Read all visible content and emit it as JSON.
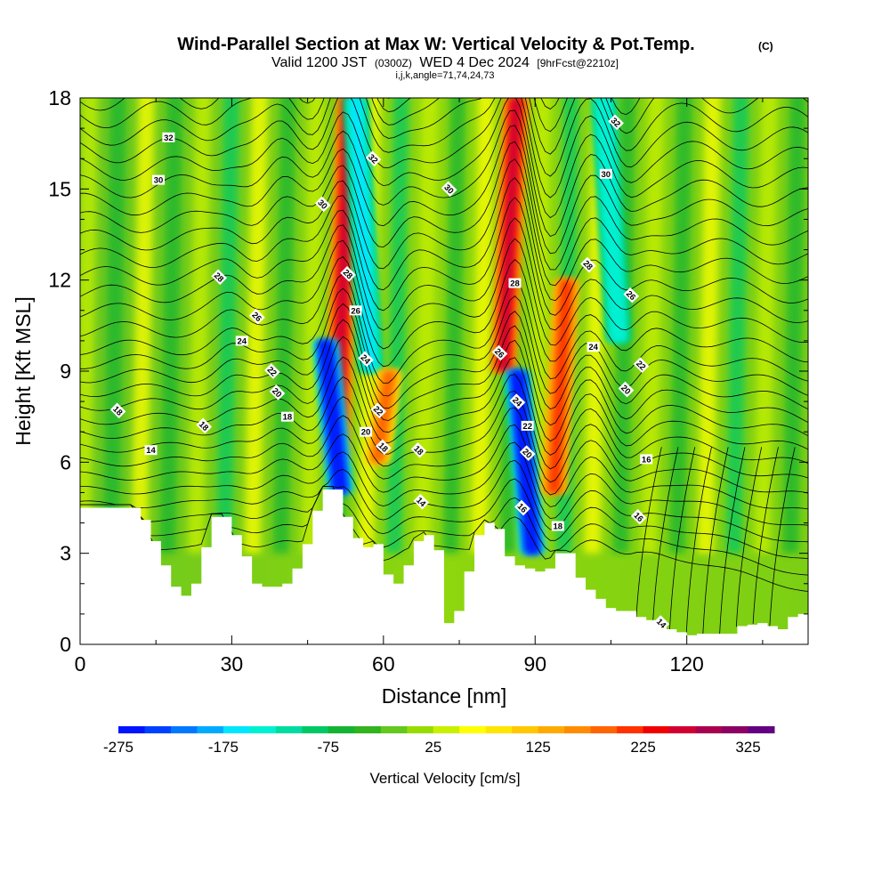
{
  "header": {
    "title": "Wind-Parallel Section at Max W: Vertical Velocity & Pot.Temp.",
    "copyright": "(C)",
    "valid_prefix": "Valid 1200 JST",
    "valid_utc": "(0300Z)",
    "valid_date": "WED 4 Dec 2024",
    "forecast": "[9hrFcst@2210z]",
    "indices": "i,j,k,angle=71,74,24,73"
  },
  "chart_data": {
    "type": "heatmap",
    "xlabel": "Distance [nm]",
    "ylabel": "Height [Kft MSL]",
    "xlim": [
      0,
      144
    ],
    "ylim": [
      0,
      18
    ],
    "x_ticks": [
      "0",
      "30",
      "60",
      "90",
      "120"
    ],
    "y_ticks": [
      "0",
      "3",
      "6",
      "9",
      "12",
      "15",
      "18"
    ],
    "grid": false,
    "colorbar": {
      "label": "Vertical Velocity [cm/s]",
      "tick_labels": [
        "-275",
        "-175",
        "-75",
        "25",
        "125",
        "225",
        "325"
      ],
      "range": [
        -275,
        350
      ],
      "colors": [
        "#0014ff",
        "#0040ff",
        "#0078ff",
        "#00aaff",
        "#00e6ff",
        "#00f0d2",
        "#00dca0",
        "#00c864",
        "#14b432",
        "#32b41e",
        "#64c81e",
        "#96dc00",
        "#c8f000",
        "#ffff00",
        "#ffe600",
        "#ffc800",
        "#ffaa00",
        "#ff8c00",
        "#ff6400",
        "#ff3200",
        "#f00000",
        "#d20032",
        "#aa0050",
        "#8c0064",
        "#640082"
      ]
    },
    "vertical_velocity_features": [
      {
        "kind": "updraft",
        "x": 52,
        "y_bottom": 6,
        "y_top": 18,
        "peak": 250
      },
      {
        "kind": "downdraft",
        "x": 50,
        "y_bottom": 5,
        "y_top": 10,
        "peak": -275
      },
      {
        "kind": "downdraft",
        "x": 56,
        "y_bottom": 9,
        "y_top": 18,
        "peak": -175
      },
      {
        "kind": "updraft",
        "x": 60,
        "y_bottom": 6,
        "y_top": 9,
        "peak": 175
      },
      {
        "kind": "updraft",
        "x": 85,
        "y_bottom": 9,
        "y_top": 18,
        "peak": 250
      },
      {
        "kind": "downdraft",
        "x": 88,
        "y_bottom": 3,
        "y_top": 9,
        "peak": -275
      },
      {
        "kind": "updraft",
        "x": 95,
        "y_bottom": 5,
        "y_top": 12,
        "peak": 200
      },
      {
        "kind": "downdraft",
        "x": 105,
        "y_bottom": 10,
        "y_top": 18,
        "peak": -150
      }
    ],
    "terrain_kft": {
      "x": [
        0,
        6,
        10,
        12,
        14,
        16,
        18,
        20,
        22,
        24,
        26,
        28,
        30,
        32,
        34,
        36,
        38,
        40,
        42,
        44,
        46,
        48,
        50,
        52,
        54,
        56,
        58,
        60,
        62,
        64,
        66,
        68,
        70,
        72,
        74,
        76,
        78,
        80,
        82,
        84,
        86,
        88,
        90,
        92,
        94,
        96,
        98,
        100,
        102,
        104,
        106,
        108,
        110,
        112,
        114,
        116,
        118,
        120,
        122,
        124,
        126,
        128,
        130,
        132,
        134,
        136,
        138,
        140,
        142,
        144
      ],
      "h": [
        4.5,
        4.5,
        4.5,
        4.1,
        3.4,
        2.6,
        1.9,
        1.6,
        2.0,
        3.2,
        4.2,
        4.2,
        3.6,
        2.9,
        2.0,
        1.9,
        1.9,
        2.0,
        2.5,
        3.3,
        4.4,
        5.1,
        5.1,
        4.2,
        3.5,
        3.2,
        3.3,
        2.3,
        2.0,
        2.6,
        3.4,
        3.6,
        3.1,
        0.7,
        1.1,
        2.4,
        3.6,
        4.0,
        3.8,
        2.9,
        2.6,
        2.5,
        2.4,
        2.5,
        3.0,
        3.0,
        2.2,
        1.8,
        1.5,
        1.2,
        1.1,
        1.1,
        0.9,
        0.8,
        0.7,
        0.5,
        0.4,
        0.3,
        0.35,
        0.35,
        0.35,
        0.35,
        0.6,
        0.65,
        0.7,
        0.6,
        0.5,
        0.9,
        1.0,
        1.0
      ]
    },
    "theta_contour_labels": [
      {
        "text": "32",
        "x": 17.5,
        "y": 16.7
      },
      {
        "text": "32",
        "x": 58,
        "y": 16.0
      },
      {
        "text": "32",
        "x": 106,
        "y": 17.2
      },
      {
        "text": "30",
        "x": 15.5,
        "y": 15.3
      },
      {
        "text": "30",
        "x": 48,
        "y": 14.5
      },
      {
        "text": "30",
        "x": 73,
        "y": 15.0
      },
      {
        "text": "30",
        "x": 104,
        "y": 15.5
      },
      {
        "text": "28",
        "x": 27.5,
        "y": 12.1
      },
      {
        "text": "28",
        "x": 53,
        "y": 12.2
      },
      {
        "text": "28",
        "x": 86,
        "y": 11.9
      },
      {
        "text": "28",
        "x": 100.5,
        "y": 12.5
      },
      {
        "text": "26",
        "x": 35,
        "y": 10.8
      },
      {
        "text": "26",
        "x": 54.5,
        "y": 11.0
      },
      {
        "text": "26",
        "x": 83,
        "y": 9.6
      },
      {
        "text": "26",
        "x": 109,
        "y": 11.5
      },
      {
        "text": "24",
        "x": 32,
        "y": 10.0
      },
      {
        "text": "24",
        "x": 56.5,
        "y": 9.4
      },
      {
        "text": "24",
        "x": 86.5,
        "y": 8.0
      },
      {
        "text": "24",
        "x": 101.5,
        "y": 9.8
      },
      {
        "text": "22",
        "x": 38,
        "y": 9.0
      },
      {
        "text": "22",
        "x": 59,
        "y": 7.7
      },
      {
        "text": "22",
        "x": 88.5,
        "y": 7.2
      },
      {
        "text": "22",
        "x": 111,
        "y": 9.2
      },
      {
        "text": "20",
        "x": 39,
        "y": 8.3
      },
      {
        "text": "20",
        "x": 56.5,
        "y": 7.0
      },
      {
        "text": "20",
        "x": 88.5,
        "y": 6.3
      },
      {
        "text": "20",
        "x": 108,
        "y": 8.4
      },
      {
        "text": "18",
        "x": 41,
        "y": 7.5
      },
      {
        "text": "18",
        "x": 60,
        "y": 6.5
      },
      {
        "text": "18",
        "x": 67,
        "y": 6.4
      },
      {
        "text": "18",
        "x": 94.5,
        "y": 3.9
      },
      {
        "text": "18",
        "x": 7.5,
        "y": 7.7
      },
      {
        "text": "18",
        "x": 24.5,
        "y": 7.2
      },
      {
        "text": "16",
        "x": 112,
        "y": 6.1
      },
      {
        "text": "16",
        "x": 87.5,
        "y": 4.5
      },
      {
        "text": "16",
        "x": 110.5,
        "y": 4.2
      },
      {
        "text": "14",
        "x": 14,
        "y": 6.4
      },
      {
        "text": "14",
        "x": 67.5,
        "y": 4.7
      },
      {
        "text": "14",
        "x": 115,
        "y": 0.7
      }
    ]
  }
}
